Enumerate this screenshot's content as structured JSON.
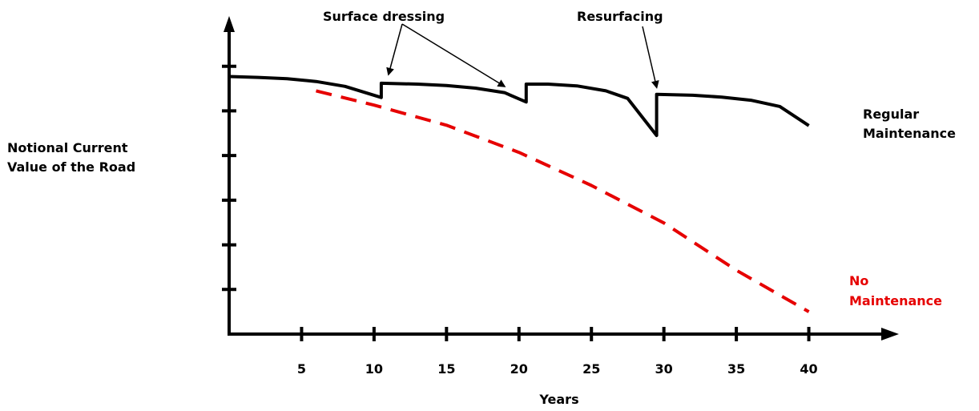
{
  "chart_data": {
    "type": "line",
    "xlabel": "Years",
    "ylabel_lines": [
      "Notional Current",
      "Value of the Road"
    ],
    "x_ticks": [
      5,
      10,
      15,
      20,
      25,
      30,
      35,
      40
    ],
    "xlim": [
      0,
      45
    ],
    "ylim": [
      0,
      7
    ],
    "y_tick_count": 6,
    "series": [
      {
        "name_lines": [
          "Regular",
          "Maintenance"
        ],
        "color": "#000000",
        "style": "solid",
        "points": [
          [
            0,
            5.77
          ],
          [
            2,
            5.75
          ],
          [
            4,
            5.72
          ],
          [
            6,
            5.66
          ],
          [
            8,
            5.55
          ],
          [
            10.5,
            5.3
          ],
          [
            10.5,
            5.62
          ],
          [
            13,
            5.6
          ],
          [
            15,
            5.57
          ],
          [
            17,
            5.51
          ],
          [
            19,
            5.41
          ],
          [
            20.5,
            5.2
          ],
          [
            20.5,
            5.6
          ],
          [
            22,
            5.6
          ],
          [
            24,
            5.56
          ],
          [
            26,
            5.45
          ],
          [
            27.5,
            5.28
          ],
          [
            29.5,
            4.45
          ],
          [
            29.5,
            5.37
          ],
          [
            32,
            5.35
          ],
          [
            34,
            5.31
          ],
          [
            36,
            5.24
          ],
          [
            38,
            5.1
          ],
          [
            40,
            4.67
          ]
        ]
      },
      {
        "name_lines": [
          "No",
          "Maintenance"
        ],
        "color": "#e60000",
        "style": "dashed",
        "points": [
          [
            6,
            5.45
          ],
          [
            10,
            5.13
          ],
          [
            15,
            4.68
          ],
          [
            20,
            4.07
          ],
          [
            25,
            3.33
          ],
          [
            30,
            2.49
          ],
          [
            35,
            1.43
          ],
          [
            40,
            0.5
          ]
        ]
      }
    ],
    "annotations": [
      {
        "text": "Surface dressing",
        "arrows_to": [
          [
            11,
            5.82
          ],
          [
            19,
            5.55
          ]
        ]
      },
      {
        "text": "Resurfacing",
        "arrows_to": [
          [
            29.5,
            5.53
          ]
        ]
      }
    ]
  }
}
